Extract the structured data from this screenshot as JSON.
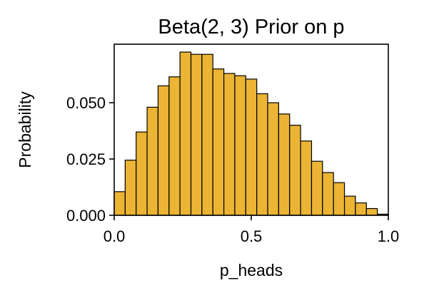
{
  "chart_data": {
    "type": "bar",
    "title": "Beta(2, 3) Prior on p",
    "xlabel": "p_heads",
    "ylabel": "Probability",
    "xlim": [
      0,
      1
    ],
    "ylim": [
      0,
      0.076
    ],
    "bar_color": "#EBB434",
    "edge_color": "#000000",
    "bin_width": 0.04,
    "bins": [
      {
        "x": 0.0,
        "value": 0.0105
      },
      {
        "x": 0.04,
        "value": 0.0245
      },
      {
        "x": 0.08,
        "value": 0.037
      },
      {
        "x": 0.12,
        "value": 0.048
      },
      {
        "x": 0.16,
        "value": 0.0575
      },
      {
        "x": 0.2,
        "value": 0.0615
      },
      {
        "x": 0.24,
        "value": 0.0725
      },
      {
        "x": 0.28,
        "value": 0.0715
      },
      {
        "x": 0.32,
        "value": 0.0715
      },
      {
        "x": 0.36,
        "value": 0.065
      },
      {
        "x": 0.4,
        "value": 0.063
      },
      {
        "x": 0.44,
        "value": 0.062
      },
      {
        "x": 0.48,
        "value": 0.0605
      },
      {
        "x": 0.52,
        "value": 0.054
      },
      {
        "x": 0.56,
        "value": 0.05
      },
      {
        "x": 0.6,
        "value": 0.045
      },
      {
        "x": 0.64,
        "value": 0.04
      },
      {
        "x": 0.68,
        "value": 0.033
      },
      {
        "x": 0.72,
        "value": 0.024
      },
      {
        "x": 0.76,
        "value": 0.019
      },
      {
        "x": 0.8,
        "value": 0.0145
      },
      {
        "x": 0.84,
        "value": 0.0085
      },
      {
        "x": 0.88,
        "value": 0.0055
      },
      {
        "x": 0.92,
        "value": 0.003
      },
      {
        "x": 0.96,
        "value": 0.0005
      }
    ],
    "x_ticks": [
      {
        "value": 0.0,
        "label": "0.0"
      },
      {
        "value": 0.5,
        "label": "0.5"
      },
      {
        "value": 1.0,
        "label": "1.0"
      }
    ],
    "y_ticks": [
      {
        "value": 0.0,
        "label": "0.000"
      },
      {
        "value": 0.025,
        "label": "0.025"
      },
      {
        "value": 0.05,
        "label": "0.050"
      }
    ],
    "grid": false,
    "legend": "none"
  }
}
